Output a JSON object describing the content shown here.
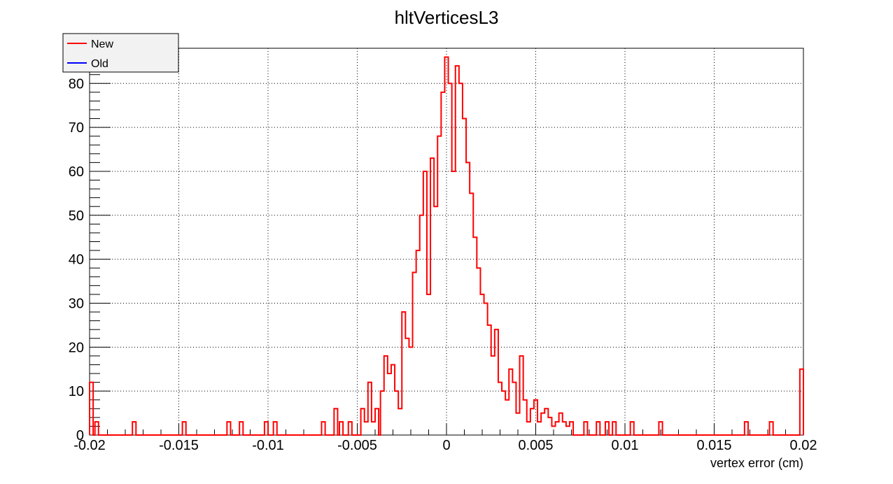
{
  "chart_data": {
    "type": "line",
    "title": "hltVerticesL3",
    "xlabel": "vertex error (cm)",
    "ylabel": "",
    "xlim": [
      -0.02,
      0.02
    ],
    "ylim": [
      0,
      88
    ],
    "grid": true,
    "legend_position": "top-left",
    "x_ticks": [
      -0.02,
      -0.015,
      -0.01,
      -0.005,
      0,
      0.005,
      0.01,
      0.015,
      0.02
    ],
    "x_tick_labels": [
      "-0.02",
      "-0.015",
      "-0.01",
      "-0.005",
      "0",
      "0.005",
      "0.01",
      "0.015",
      "0.02"
    ],
    "y_ticks": [
      0,
      10,
      20,
      30,
      40,
      50,
      60,
      70,
      80
    ],
    "y_tick_labels": [
      "0",
      "10",
      "20",
      "30",
      "40",
      "50",
      "60",
      "70",
      "80"
    ],
    "series": [
      {
        "name": "New",
        "color": "#ff0000",
        "x": [
          -0.0199,
          -0.0196,
          -0.0175,
          -0.0147,
          -0.0122,
          -0.0115,
          -0.0101,
          -0.0096,
          -0.0069,
          -0.0062,
          -0.0059,
          -0.0054,
          -0.0047,
          -0.0045,
          -0.0043,
          -0.0041,
          -0.0039,
          -0.0036,
          -0.0034,
          -0.0032,
          -0.003,
          -0.0028,
          -0.0026,
          -0.0024,
          -0.0022,
          -0.002,
          -0.0018,
          -0.0016,
          -0.0014,
          -0.0012,
          -0.001,
          -0.0008,
          -0.0006,
          -0.0004,
          -0.0002,
          0.0,
          0.0002,
          0.0004,
          0.0006,
          0.0008,
          0.001,
          0.0012,
          0.0014,
          0.0016,
          0.0018,
          0.002,
          0.0022,
          0.0024,
          0.0026,
          0.0028,
          0.003,
          0.0032,
          0.0034,
          0.0036,
          0.0038,
          0.004,
          0.0042,
          0.0044,
          0.0046,
          0.0048,
          0.005,
          0.0052,
          0.0054,
          0.0056,
          0.0058,
          0.006,
          0.0062,
          0.0064,
          0.0066,
          0.0068,
          0.007,
          0.0078,
          0.0085,
          0.009,
          0.0094,
          0.0104,
          0.012,
          0.0168,
          0.0182,
          0.0199
        ],
        "values": [
          12,
          3,
          3,
          3,
          3,
          3,
          3,
          3,
          3,
          6,
          3,
          3,
          6,
          3,
          12,
          3,
          6,
          10,
          18,
          14,
          16,
          10,
          6,
          28,
          22,
          20,
          37,
          42,
          50,
          60,
          32,
          63,
          52,
          68,
          78,
          86,
          80,
          60,
          84,
          80,
          72,
          62,
          55,
          45,
          38,
          32,
          30,
          25,
          18,
          24,
          12,
          10,
          8,
          15,
          12,
          5,
          18,
          8,
          3,
          6,
          8,
          3,
          5,
          6,
          4,
          2,
          3,
          5,
          3,
          2,
          3,
          3,
          3,
          3,
          3,
          3,
          3,
          3,
          3,
          15
        ]
      },
      {
        "name": "Old",
        "color": "#0000ff",
        "x": [],
        "values": []
      }
    ]
  }
}
